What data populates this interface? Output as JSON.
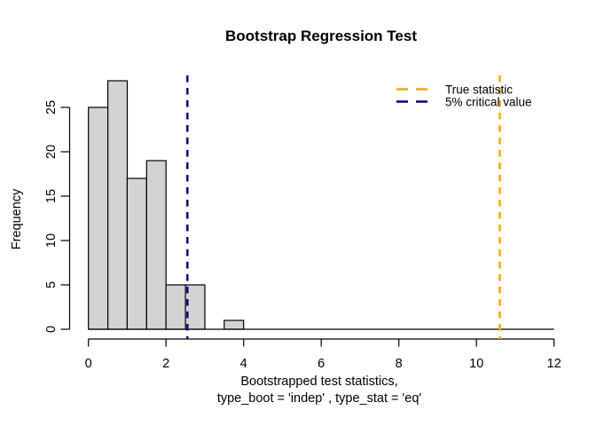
{
  "figure": {
    "background": "#ffffff"
  },
  "chart_data": {
    "type": "bar",
    "subtype": "histogram",
    "title": "Bootstrap Regression Test",
    "ylabel": "Frequency",
    "xlabel_line1": "Bootstrapped test statistics,",
    "xlabel_line2": "type_boot = 'indep' , type_stat = 'eq'",
    "bins": {
      "start": 0,
      "width": 0.5,
      "counts": [
        25,
        28,
        17,
        19,
        5,
        5,
        0,
        1
      ]
    },
    "x_ticks": [
      0,
      2,
      4,
      6,
      8,
      10,
      12
    ],
    "y_ticks": [
      0,
      5,
      10,
      15,
      20,
      25
    ],
    "xlim": [
      0,
      12
    ],
    "ylim": [
      0,
      28
    ],
    "grid": false,
    "bar_fill": "#d3d3d3",
    "bar_stroke": "#000000",
    "axis_color": "#000000",
    "vlines": [
      {
        "name": "true-statistic",
        "x": 10.6,
        "color": "#ffa500",
        "style": "dashed",
        "label": "True statistic"
      },
      {
        "name": "critical-value",
        "x": 2.55,
        "color": "#000080",
        "style": "dashed",
        "label": "5% critical value"
      }
    ],
    "legend": {
      "position": "top-right",
      "items": [
        {
          "label": "True statistic",
          "color": "#ffa500",
          "line_style": "dashed"
        },
        {
          "label": "5% critical value",
          "color": "#000080",
          "line_style": "dashed"
        }
      ]
    }
  }
}
